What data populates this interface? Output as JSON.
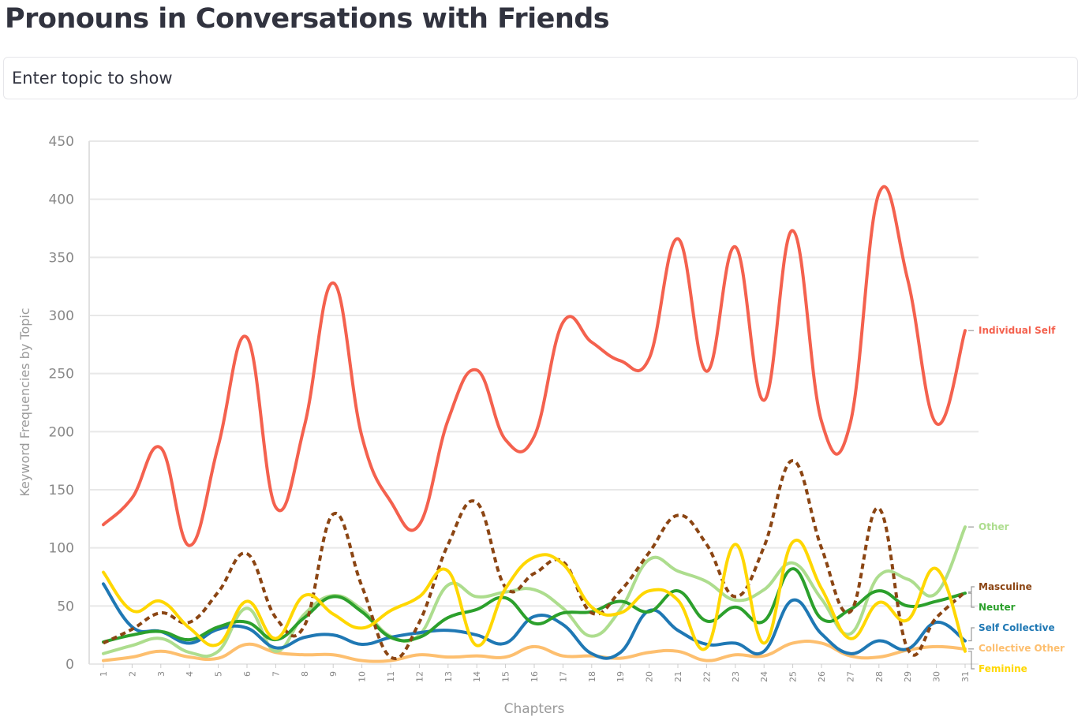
{
  "page": {
    "title": "Pronouns in Conversations with Friends",
    "topic_input_text": "Enter topic to show"
  },
  "chart_data": {
    "type": "line",
    "title": "",
    "xlabel": "Chapters",
    "ylabel": "Keyword Frequencies by Topic",
    "ylim": [
      0,
      450
    ],
    "yticks": [
      0,
      50,
      100,
      150,
      200,
      250,
      300,
      350,
      400,
      450
    ],
    "grid": true,
    "legend": "line-end labels on right",
    "x": [
      1,
      2,
      3,
      4,
      5,
      6,
      7,
      8,
      9,
      10,
      11,
      12,
      13,
      14,
      15,
      16,
      17,
      18,
      19,
      20,
      21,
      22,
      23,
      24,
      25,
      26,
      27,
      28,
      29,
      30,
      31
    ],
    "series": [
      {
        "name": "Individual Self",
        "color": "#f4614e",
        "dashed": false,
        "values": [
          120,
          143,
          186,
          102,
          188,
          281,
          135,
          205,
          328,
          196,
          140,
          120,
          210,
          253,
          193,
          196,
          294,
          277,
          261,
          263,
          366,
          252,
          359,
          227,
          373,
          209,
          207,
          405,
          331,
          207,
          287
        ]
      },
      {
        "name": "Other",
        "color": "#addd8e",
        "dashed": false,
        "values": [
          9,
          16,
          22,
          10,
          11,
          48,
          11,
          43,
          59,
          47,
          24,
          25,
          68,
          58,
          62,
          64,
          48,
          24,
          47,
          90,
          80,
          71,
          55,
          64,
          87,
          56,
          26,
          76,
          73,
          61,
          118
        ]
      },
      {
        "name": "Neuter",
        "color": "#2ca02c",
        "dashed": false,
        "values": [
          19,
          25,
          28,
          21,
          32,
          36,
          21,
          40,
          58,
          45,
          23,
          23,
          40,
          47,
          57,
          35,
          44,
          45,
          54,
          45,
          63,
          37,
          49,
          37,
          82,
          39,
          47,
          63,
          50,
          54,
          61
        ]
      },
      {
        "name": "Masculine",
        "color": "#8b4513",
        "dashed": true,
        "values": [
          18,
          30,
          44,
          36,
          62,
          95,
          40,
          33,
          129,
          67,
          6,
          36,
          103,
          139,
          66,
          78,
          88,
          44,
          63,
          96,
          128,
          103,
          58,
          101,
          175,
          100,
          45,
          134,
          13,
          40,
          62
        ]
      },
      {
        "name": "Self Collective",
        "color": "#1f78b4",
        "dashed": false,
        "values": [
          69,
          32,
          28,
          18,
          30,
          31,
          14,
          23,
          25,
          17,
          23,
          27,
          29,
          25,
          18,
          41,
          34,
          9,
          10,
          46,
          29,
          17,
          18,
          11,
          55,
          26,
          9,
          20,
          13,
          36,
          20
        ]
      },
      {
        "name": "Collective Other",
        "color": "#fdbf6f",
        "dashed": false,
        "values": [
          3,
          6,
          11,
          6,
          5,
          17,
          10,
          8,
          8,
          3,
          3,
          8,
          6,
          7,
          6,
          15,
          7,
          7,
          5,
          10,
          11,
          3,
          8,
          7,
          18,
          18,
          7,
          6,
          12,
          15,
          13
        ]
      },
      {
        "name": "Feminine",
        "color": "#ffd700",
        "dashed": false,
        "values": [
          79,
          46,
          54,
          31,
          17,
          54,
          22,
          59,
          43,
          31,
          46,
          58,
          80,
          16,
          65,
          92,
          86,
          49,
          44,
          63,
          55,
          14,
          103,
          18,
          105,
          65,
          22,
          53,
          38,
          82,
          11
        ]
      }
    ]
  }
}
